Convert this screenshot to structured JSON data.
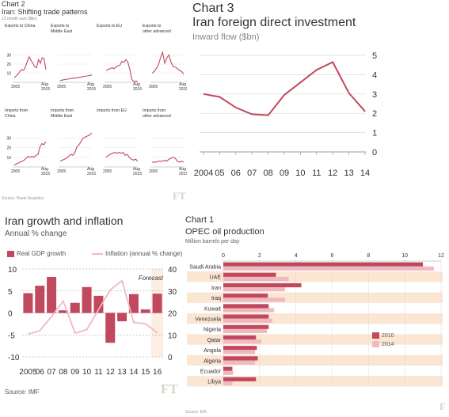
{
  "colors": {
    "main": "#c0495e",
    "light": "#f0b9c0",
    "band": "#fbe5d3",
    "grid": "#c8c8c8",
    "forecast": "#fdeee3"
  },
  "chart2": {
    "label": "Chart 2",
    "title": "Iran: Shifting trade patterns",
    "subtitle": "12 month sum ($bn)",
    "source": "Source: Haver Analytics",
    "logo": "FT",
    "small_x_labels": [
      "2005",
      "Aug\n2015"
    ],
    "export_y_ticks": [
      "30",
      "20",
      "10"
    ],
    "import_y_ticks": [
      "30",
      "20",
      "10"
    ]
  },
  "chart3": {
    "label": "Chart 3",
    "title": "Iran foreign direct investment",
    "subtitle": "Inward flow ($bn)",
    "y_ticks": [
      "5",
      "4",
      "3",
      "2",
      "1",
      "0"
    ],
    "x_ticks": [
      "2004",
      "05",
      "06",
      "07",
      "08",
      "09",
      "10",
      "11",
      "12",
      "13",
      "14"
    ]
  },
  "chart4": {
    "title": "Iran growth and inflation",
    "subtitle": "Annual % change",
    "legend_gdp": "Real GDP growth",
    "legend_inflation": "Inflation (annual % change)",
    "forecast_label": "Forecast",
    "left_ticks": [
      "10",
      "5",
      "0",
      "-5",
      "-10"
    ],
    "right_ticks": [
      "40",
      "30",
      "20",
      "10",
      "0"
    ],
    "x_ticks": [
      "2005",
      "06",
      "07",
      "08",
      "09",
      "10",
      "11",
      "12",
      "13",
      "14",
      "15",
      "16"
    ],
    "source": "Source: IMF",
    "logo": "FT"
  },
  "chart1": {
    "label": "Chart 1",
    "title": "OPEC oil production",
    "subtitle": "Million barrels per day",
    "x_ticks": [
      "0",
      "2",
      "4",
      "6",
      "8",
      "10",
      "12"
    ],
    "legend_2010": "2010",
    "legend_2014": "2014",
    "source": "Source: EIA",
    "logo": "F"
  },
  "chart_data": [
    {
      "type": "line",
      "title": "Iran: Shifting trade patterns",
      "subtitle": "12 month sum ($bn)",
      "x_range": [
        "2005",
        "Aug 2015"
      ],
      "ylim": [
        0,
        40
      ],
      "panels": [
        {
          "name": "Exports to China",
          "values": [
            5,
            7,
            9,
            12,
            14,
            13,
            17,
            23,
            28,
            24,
            21,
            17,
            16,
            25,
            21,
            27,
            26,
            14
          ]
        },
        {
          "name": "Exports to Middle East",
          "values": [
            2,
            2.5,
            3,
            3.5,
            4,
            4.2,
            4.6,
            5,
            5.5,
            6,
            6.5,
            7,
            7.5,
            8
          ]
        },
        {
          "name": "Exports to EU",
          "values": [
            13,
            14,
            15,
            16,
            15,
            17,
            18,
            19,
            23,
            22,
            25,
            22,
            14,
            3,
            1,
            1,
            1
          ]
        },
        {
          "name": "Exports to other advanced",
          "values": [
            10,
            12,
            15,
            19,
            27,
            33,
            21,
            27,
            30,
            22,
            17,
            17,
            15,
            13,
            12,
            9
          ]
        },
        {
          "name": "Imports from China",
          "values": [
            2,
            3,
            4,
            5,
            6,
            7,
            9,
            11,
            10,
            11,
            10,
            12,
            13,
            21,
            24,
            23,
            26
          ]
        },
        {
          "name": "Imports from Middle East",
          "values": [
            6,
            7,
            8,
            9,
            11,
            13,
            12,
            15,
            21,
            23,
            27,
            30,
            31,
            32,
            33,
            35
          ]
        },
        {
          "name": "Imports from EU",
          "values": [
            10,
            12,
            13,
            14,
            15,
            14,
            15,
            14,
            15,
            12,
            13,
            10,
            8,
            7,
            8,
            6
          ]
        },
        {
          "name": "Imports from other advanced",
          "values": [
            5,
            5,
            5,
            6,
            6,
            6,
            7,
            6,
            8,
            9,
            10,
            9,
            6,
            5,
            6,
            5
          ]
        }
      ]
    },
    {
      "type": "line",
      "title": "Iran foreign direct investment",
      "subtitle": "Inward flow ($bn)",
      "x": [
        "2004",
        "05",
        "06",
        "07",
        "08",
        "09",
        "10",
        "11",
        "12",
        "13",
        "14"
      ],
      "values": [
        3.0,
        2.85,
        2.3,
        1.95,
        1.9,
        2.95,
        3.6,
        4.25,
        4.65,
        3.05,
        2.1
      ],
      "ylim": [
        0,
        5
      ]
    },
    {
      "type": "bar",
      "title": "Iran growth and inflation",
      "subtitle": "Annual % change",
      "categories": [
        "2005",
        "06",
        "07",
        "08",
        "09",
        "10",
        "11",
        "12",
        "13",
        "14",
        "15",
        "16"
      ],
      "series": [
        {
          "name": "Real GDP growth",
          "values": [
            4.5,
            6.2,
            8.2,
            0.6,
            2.3,
            5.9,
            3.9,
            -6.8,
            -1.9,
            4.3,
            0.8,
            4.4
          ],
          "axis": "left"
        },
        {
          "name": "Inflation (annual % change)",
          "values": [
            10.4,
            11.9,
            18.4,
            25.4,
            10.8,
            12.4,
            21.5,
            30.5,
            34.7,
            15.6,
            15.1,
            11.0
          ],
          "axis": "right",
          "type": "line"
        }
      ],
      "ylim_left": [
        -10,
        10
      ],
      "ylim_right": [
        0,
        40
      ],
      "forecast_from": "16"
    },
    {
      "type": "bar",
      "orientation": "horizontal",
      "title": "OPEC oil production",
      "subtitle": "Million barrels per day",
      "categories": [
        "Saudi Arabia",
        "UAE",
        "Iran",
        "Iraq",
        "Kuwait",
        "Venezuela",
        "Nigeria",
        "Qatar",
        "Angola",
        "Algeria",
        "Ecuador",
        "Libya"
      ],
      "series": [
        {
          "name": "2010",
          "values": [
            11.0,
            2.9,
            4.3,
            2.45,
            2.5,
            2.5,
            2.5,
            1.8,
            1.85,
            1.9,
            0.5,
            1.8
          ]
        },
        {
          "name": "2014",
          "values": [
            11.6,
            3.6,
            3.4,
            3.4,
            2.8,
            2.7,
            2.4,
            2.1,
            1.75,
            1.75,
            0.55,
            0.5
          ]
        }
      ],
      "xlim": [
        0,
        12
      ]
    }
  ]
}
